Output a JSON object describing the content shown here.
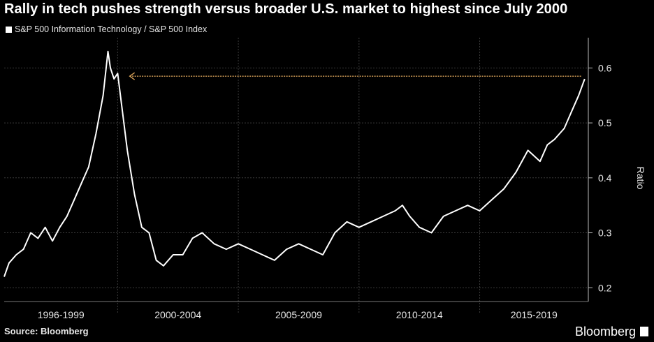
{
  "title": "Rally in tech pushes strength versus broader U.S. market to highest since July 2000",
  "source": "Source: Bloomberg",
  "brand": "Bloomberg",
  "colors": {
    "background": "#000000",
    "series": "#ffffff",
    "grid": "#3a3a3a",
    "arrow": "#d9a35a"
  },
  "chart_data": {
    "type": "line",
    "ylabel": "Ratio",
    "ylim": [
      0.18,
      0.65
    ],
    "yticks": [
      0.2,
      0.3,
      0.4,
      0.5,
      0.6
    ],
    "xlim": [
      1995.8,
      2020.0
    ],
    "x_period_boundaries": [
      1995.8,
      2000.5,
      2005.5,
      2010.5,
      2015.5,
      2020.0
    ],
    "x_period_labels": [
      "1996-1999",
      "2000-2004",
      "2005-2009",
      "2010-2014",
      "2015-2019"
    ],
    "legend": [
      "S&P 500 Information Technology / S&P 500 Index"
    ],
    "series": [
      {
        "name": "S&P 500 Information Technology / S&P 500 Index",
        "x": [
          1995.8,
          1996.0,
          1996.3,
          1996.6,
          1996.9,
          1997.2,
          1997.5,
          1997.8,
          1998.1,
          1998.4,
          1998.7,
          1999.0,
          1999.3,
          1999.6,
          1999.9,
          2000.1,
          2000.2,
          2000.35,
          2000.5,
          2000.7,
          2000.9,
          2001.2,
          2001.5,
          2001.8,
          2002.1,
          2002.4,
          2002.8,
          2003.2,
          2003.6,
          2004.0,
          2004.5,
          2005.0,
          2005.5,
          2006.0,
          2006.5,
          2007.0,
          2007.5,
          2008.0,
          2008.5,
          2009.0,
          2009.5,
          2010.0,
          2010.5,
          2011.0,
          2011.5,
          2012.0,
          2012.3,
          2012.6,
          2013.0,
          2013.5,
          2014.0,
          2014.5,
          2015.0,
          2015.5,
          2016.0,
          2016.5,
          2017.0,
          2017.5,
          2018.0,
          2018.3,
          2018.6,
          2019.0,
          2019.3,
          2019.6,
          2019.85
        ],
        "values": [
          0.22,
          0.245,
          0.26,
          0.27,
          0.3,
          0.29,
          0.31,
          0.285,
          0.31,
          0.33,
          0.36,
          0.39,
          0.42,
          0.48,
          0.55,
          0.63,
          0.6,
          0.58,
          0.59,
          0.52,
          0.45,
          0.37,
          0.31,
          0.3,
          0.25,
          0.24,
          0.26,
          0.26,
          0.29,
          0.3,
          0.28,
          0.27,
          0.28,
          0.27,
          0.26,
          0.25,
          0.27,
          0.28,
          0.27,
          0.26,
          0.3,
          0.32,
          0.31,
          0.32,
          0.33,
          0.34,
          0.35,
          0.33,
          0.31,
          0.3,
          0.33,
          0.34,
          0.35,
          0.34,
          0.36,
          0.38,
          0.41,
          0.45,
          0.43,
          0.46,
          0.47,
          0.49,
          0.52,
          0.55,
          0.58
        ]
      }
    ],
    "annotation": {
      "type": "arrow",
      "y": 0.585,
      "x_from": 2019.7,
      "x_to": 2001.0
    }
  }
}
